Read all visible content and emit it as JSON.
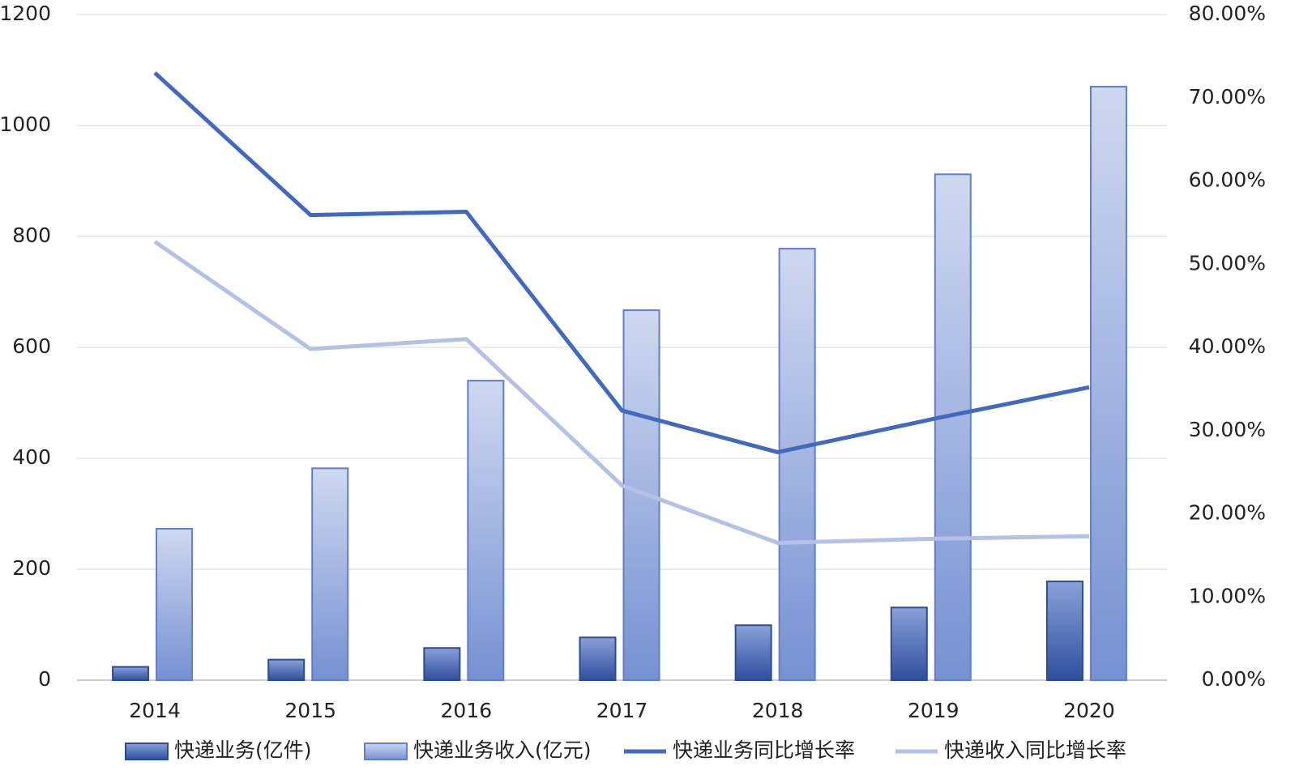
{
  "chart_data": {
    "type": "bar-line",
    "categories": [
      "2014",
      "2015",
      "2016",
      "2017",
      "2018",
      "2019",
      "2020"
    ],
    "series": [
      {
        "name": "快递业务(亿件)",
        "type": "bar",
        "color": "#3a5bab",
        "values": [
          24,
          37,
          58,
          77,
          99,
          131,
          178
        ]
      },
      {
        "name": "快递业务收入(亿元)",
        "type": "bar",
        "color": "#8fa6dc",
        "values": [
          273,
          382,
          540,
          667,
          778,
          912,
          1070
        ]
      },
      {
        "name": "快递业务同比增长率",
        "type": "line",
        "axis": "y2",
        "color": "#4169c1",
        "values": [
          73.0,
          55.9,
          56.3,
          32.4,
          27.4,
          31.4,
          35.2
        ]
      },
      {
        "name": "快递收入同比增长率",
        "type": "line",
        "axis": "y2",
        "color": "#b4c1e6",
        "values": [
          52.7,
          39.8,
          41.0,
          23.4,
          16.5,
          17.0,
          17.3
        ]
      }
    ],
    "ylim": [
      0,
      1200
    ],
    "yticks": [
      0,
      200,
      400,
      600,
      800,
      1000,
      1200
    ],
    "y2lim": [
      0,
      80
    ],
    "y2ticks": [
      {
        "value": 0,
        "label": "0.00%"
      },
      {
        "value": 10,
        "label": "10.00%"
      },
      {
        "value": 20,
        "label": "20.00%"
      },
      {
        "value": 30,
        "label": "30.00%"
      },
      {
        "value": 40,
        "label": "40.00%"
      },
      {
        "value": 50,
        "label": "50.00%"
      },
      {
        "value": 60,
        "label": "60.00%"
      },
      {
        "value": 70,
        "label": "70.00%"
      },
      {
        "value": 80,
        "label": "80.00%"
      }
    ],
    "grid": true,
    "legend": "bottom"
  }
}
